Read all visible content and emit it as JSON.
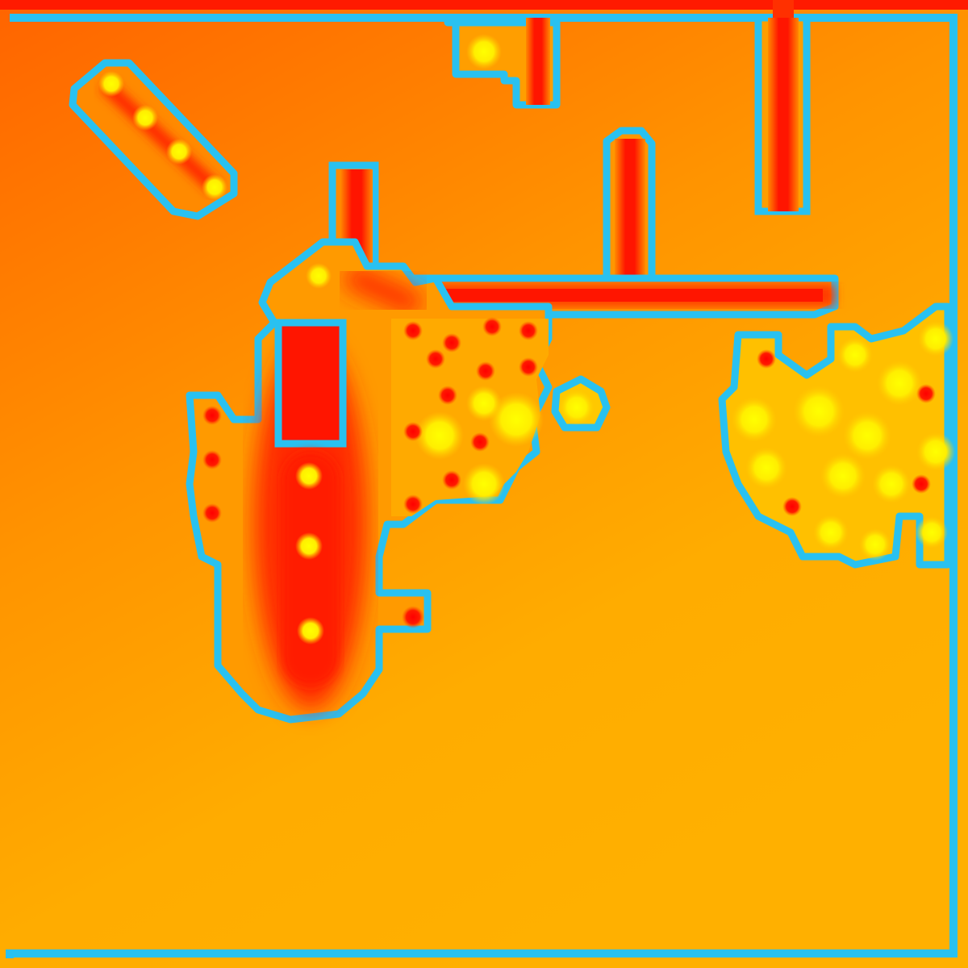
{
  "map": {
    "colors": {
      "background_top_left": "#ff6a00",
      "background_bottom_right": "#ffb000",
      "outline": "#29c1f0",
      "hot": "#ff1a00",
      "warm_spot": "#ffee00",
      "cold_spot": "#ff0000",
      "frame_top": "#ff1a00"
    },
    "regions": [
      {
        "name": "diagonal-strip",
        "type": "hot-strip"
      },
      {
        "name": "top-notch",
        "type": "hot-strip"
      },
      {
        "name": "vertical-bar-right",
        "type": "hot-strip"
      },
      {
        "name": "corridor-horizontal",
        "type": "hot-strip"
      },
      {
        "name": "tall-column",
        "type": "hot-strip"
      },
      {
        "name": "large-blob",
        "type": "hot-region"
      },
      {
        "name": "dotted-cluster-center",
        "type": "spot-cluster"
      },
      {
        "name": "dotted-cluster-right",
        "type": "spot-cluster"
      }
    ]
  }
}
